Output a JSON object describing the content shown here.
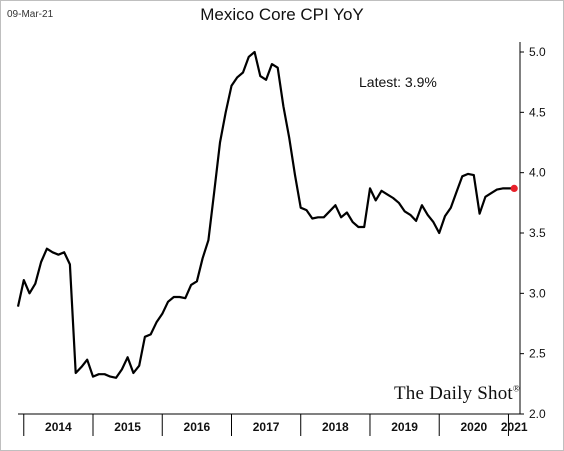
{
  "date_stamp": "09-Mar-21",
  "brand": {
    "name": "The Daily Shot",
    "mark": "®"
  },
  "chart_data": {
    "type": "line",
    "title": "Mexico Core CPI YoY",
    "annotation": "Latest:  3.9%",
    "xlabel": "",
    "ylabel": "",
    "ylim": [
      2.0,
      5.0
    ],
    "yticks": [
      2.0,
      2.5,
      3.0,
      3.5,
      4.0,
      4.5,
      5.0
    ],
    "ytick_labels": [
      "2.0",
      "2.5",
      "3.0",
      "3.5",
      "4.0",
      "4.5",
      "5.0"
    ],
    "y_axis_position": "right",
    "x_range": [
      "2013-12",
      "2021-03"
    ],
    "year_labels": [
      "2014",
      "2015",
      "2016",
      "2017",
      "2018",
      "2019",
      "2020",
      "2021"
    ],
    "grid": false,
    "line_color": "#000000",
    "marker_color": "#e8202a",
    "x": [
      "2013-12",
      "2014-01",
      "2014-02",
      "2014-03",
      "2014-04",
      "2014-05",
      "2014-06",
      "2014-07",
      "2014-08",
      "2014-09",
      "2014-10",
      "2014-11",
      "2014-12",
      "2015-01",
      "2015-02",
      "2015-03",
      "2015-04",
      "2015-05",
      "2015-06",
      "2015-07",
      "2015-08",
      "2015-09",
      "2015-10",
      "2015-11",
      "2015-12",
      "2016-01",
      "2016-02",
      "2016-03",
      "2016-04",
      "2016-05",
      "2016-06",
      "2016-07",
      "2016-08",
      "2016-09",
      "2016-10",
      "2016-11",
      "2016-12",
      "2017-01",
      "2017-02",
      "2017-03",
      "2017-04",
      "2017-05",
      "2017-06",
      "2017-07",
      "2017-08",
      "2017-09",
      "2017-10",
      "2017-11",
      "2017-12",
      "2018-01",
      "2018-02",
      "2018-03",
      "2018-04",
      "2018-05",
      "2018-06",
      "2018-07",
      "2018-08",
      "2018-09",
      "2018-10",
      "2018-11",
      "2018-12",
      "2019-01",
      "2019-02",
      "2019-03",
      "2019-04",
      "2019-05",
      "2019-06",
      "2019-07",
      "2019-08",
      "2019-09",
      "2019-10",
      "2019-11",
      "2019-12",
      "2020-01",
      "2020-02",
      "2020-03",
      "2020-04",
      "2020-05",
      "2020-06",
      "2020-07",
      "2020-08",
      "2020-09",
      "2020-10",
      "2020-11",
      "2020-12",
      "2021-01",
      "2021-02"
    ],
    "values": [
      2.89,
      3.11,
      3.0,
      3.08,
      3.26,
      3.37,
      3.34,
      3.32,
      3.34,
      3.24,
      2.34,
      2.39,
      2.45,
      2.31,
      2.33,
      2.33,
      2.31,
      2.3,
      2.37,
      2.47,
      2.34,
      2.4,
      2.64,
      2.66,
      2.76,
      2.83,
      2.93,
      2.97,
      2.97,
      2.96,
      3.07,
      3.1,
      3.29,
      3.44,
      3.84,
      4.25,
      4.5,
      4.72,
      4.79,
      4.83,
      4.96,
      5.0,
      4.8,
      4.77,
      4.9,
      4.87,
      4.55,
      4.29,
      3.98,
      3.71,
      3.69,
      3.62,
      3.63,
      3.63,
      3.68,
      3.73,
      3.63,
      3.67,
      3.59,
      3.55,
      3.55,
      3.87,
      3.77,
      3.85,
      3.82,
      3.79,
      3.75,
      3.68,
      3.65,
      3.6,
      3.73,
      3.65,
      3.59,
      3.5,
      3.64,
      3.71,
      3.84,
      3.97,
      3.99,
      3.98,
      3.66,
      3.8,
      3.83,
      3.86,
      3.87,
      3.87,
      3.87
    ],
    "latest_marker_index": 86
  }
}
